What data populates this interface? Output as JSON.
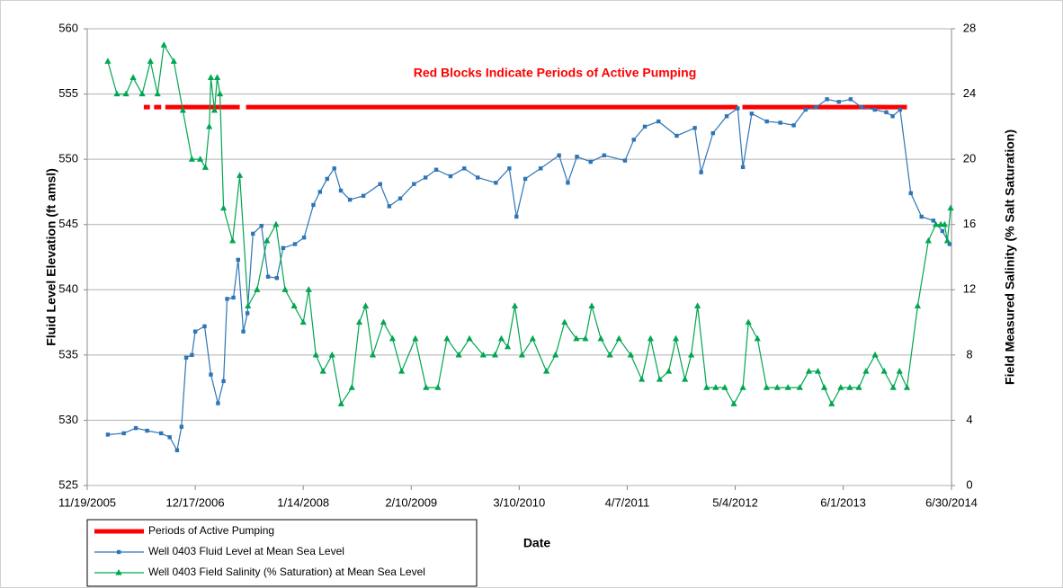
{
  "chart_data": {
    "type": "line",
    "annotation": "Red Blocks Indicate Periods of Active Pumping",
    "xlabel": "Date",
    "ylabel": "Fluid Level Elevation (ft amsl)",
    "y2label": "Field Measured Salinity (% Salt Saturation)",
    "xlim": [
      "11/19/2005",
      "6/30/2014"
    ],
    "xticks": [
      "11/19/2005",
      "12/17/2006",
      "1/14/2008",
      "2/10/2009",
      "3/10/2010",
      "4/7/2011",
      "5/4/2012",
      "6/1/2013",
      "6/30/2014"
    ],
    "ylim": [
      525,
      560
    ],
    "yticks": [
      525,
      530,
      535,
      540,
      545,
      550,
      555,
      560
    ],
    "y2lim": [
      0,
      28
    ],
    "y2ticks": [
      0,
      4,
      8,
      12,
      16,
      20,
      24,
      28
    ],
    "grid": true,
    "series": [
      {
        "name": "Periods of Active Pumping",
        "color": "#ff0000",
        "marker": "none",
        "axis": "y",
        "x": [
          "6/13/2006",
          "7/5/2006",
          "7/12/2006",
          "7/20/2006",
          "8/15/2006",
          "8/22/2006",
          "8/30/2006",
          "5/28/2007",
          "6/8/2007",
          "6/20/2007",
          "5/13/2012",
          "5/22/2012",
          "5/30/2012",
          "1/19/2014"
        ],
        "values": [
          554,
          554,
          null,
          554,
          554,
          null,
          554,
          554,
          null,
          554,
          554,
          null,
          554,
          554
        ]
      },
      {
        "name": "Well 0403 Fluid Level at Mean Sea Level",
        "color": "#2e75b6",
        "marker": "square",
        "axis": "y",
        "x": [
          "2/2/2006",
          "4/1/2006",
          "5/15/2006",
          "6/25/2006",
          "8/15/2006",
          "9/15/2006",
          "10/12/2006",
          "10/28/2006",
          "11/14/2006",
          "12/5/2006",
          "12/17/2006",
          "1/20/2007",
          "2/12/2007",
          "3/10/2007",
          "3/30/2007",
          "4/12/2007",
          "5/5/2007",
          "5/22/2007",
          "6/10/2007",
          "6/25/2007",
          "7/15/2007",
          "8/15/2007",
          "9/8/2007",
          "10/10/2007",
          "11/2/2007",
          "12/15/2007",
          "1/17/2008",
          "2/20/2008",
          "3/15/2008",
          "4/10/2008",
          "5/6/2008",
          "5/30/2008",
          "7/2/2008",
          "8/20/2008",
          "10/20/2008",
          "11/22/2008",
          "1/1/2009",
          "2/20/2009",
          "4/3/2009",
          "5/12/2009",
          "7/3/2009",
          "8/22/2009",
          "10/10/2009",
          "12/15/2009",
          "2/2/2010",
          "2/28/2010",
          "4/1/2010",
          "5/27/2010",
          "8/2/2010",
          "9/3/2010",
          "10/6/2010",
          "11/25/2010",
          "1/13/2011",
          "3/30/2011",
          "5/1/2011",
          "6/10/2011",
          "7/30/2011",
          "10/4/2011",
          "12/9/2011",
          "1/1/2012",
          "2/13/2012",
          "4/3/2012",
          "5/13/2012",
          "6/1/2012",
          "7/3/2012",
          "8/27/2012",
          "10/15/2012",
          "12/3/2012",
          "1/15/2013",
          "2/23/2013",
          "4/3/2013",
          "5/16/2013",
          "6/28/2013",
          "8/6/2013",
          "9/24/2013",
          "11/5/2013",
          "11/28/2013",
          "12/25/2013",
          "2/2/2014",
          "3/13/2014",
          "4/25/2014",
          "5/28/2014",
          "6/23/2014"
        ],
        "values": [
          528.9,
          529.0,
          529.4,
          529.2,
          529.0,
          528.7,
          527.7,
          529.5,
          534.8,
          535.0,
          536.8,
          537.2,
          533.5,
          531.3,
          533.0,
          539.3,
          539.4,
          542.3,
          536.8,
          538.2,
          544.3,
          544.9,
          541.0,
          540.9,
          543.2,
          543.5,
          544.0,
          546.5,
          547.5,
          548.5,
          549.3,
          547.6,
          546.9,
          547.2,
          548.1,
          546.4,
          547.0,
          548.1,
          548.6,
          549.2,
          548.7,
          549.3,
          548.6,
          548.2,
          549.3,
          545.6,
          548.5,
          549.3,
          550.3,
          548.2,
          550.2,
          549.8,
          550.3,
          549.9,
          551.5,
          552.5,
          552.9,
          551.8,
          552.4,
          549.0,
          552.0,
          553.3,
          553.9,
          549.4,
          553.5,
          552.9,
          552.8,
          552.6,
          553.8,
          554.0,
          554.6,
          554.4,
          554.6,
          554.0,
          553.8,
          553.6,
          553.3,
          553.8,
          547.4,
          545.6,
          545.3,
          544.5,
          543.5
        ]
      },
      {
        "name": "Well 0403 Field Salinity (% Saturation) at Mean Sea Level",
        "color": "#00a651",
        "marker": "triangle",
        "axis": "y2",
        "x": [
          "2/2/2006",
          "3/7/2006",
          "4/9/2006",
          "5/5/2006",
          "6/7/2006",
          "7/7/2006",
          "8/2/2006",
          "8/25/2006",
          "9/30/2006",
          "11/2/2006",
          "12/5/2006",
          "1/4/2007",
          "1/23/2007",
          "2/6/2007",
          "2/12/2007",
          "2/25/2007",
          "3/7/2007",
          "3/17/2007",
          "3/30/2007",
          "5/2/2007",
          "5/28/2007",
          "6/27/2007",
          "7/30/2007",
          "9/4/2007",
          "10/7/2007",
          "11/9/2007",
          "12/12/2007",
          "1/14/2008",
          "2/3/2008",
          "2/29/2008",
          "3/26/2008",
          "4/28/2008",
          "5/31/2008",
          "7/9/2008",
          "8/5/2008",
          "8/28/2008",
          "9/23/2008",
          "11/1/2008",
          "12/4/2008",
          "1/6/2009",
          "2/25/2009",
          "4/5/2009",
          "5/18/2009",
          "6/20/2009",
          "8/2/2009",
          "9/10/2009",
          "10/30/2009",
          "12/12/2009",
          "1/4/2010",
          "1/27/2010",
          "2/22/2010",
          "3/20/2010",
          "4/28/2010",
          "6/17/2010",
          "7/20/2010",
          "8/22/2010",
          "10/4/2010",
          "11/6/2010",
          "11/29/2010",
          "1/1/2011",
          "2/3/2011",
          "3/8/2011",
          "4/20/2011",
          "5/30/2011",
          "7/1/2011",
          "8/3/2011",
          "9/5/2011",
          "10/1/2011",
          "11/3/2011",
          "11/26/2011",
          "12/19/2011",
          "1/21/2012",
          "2/23/2012",
          "3/27/2012",
          "4/29/2012",
          "6/1/2012",
          "6/21/2012",
          "7/24/2012",
          "8/26/2012",
          "10/4/2012",
          "11/12/2012",
          "12/25/2012",
          "1/27/2013",
          "3/1/2013",
          "3/24/2013",
          "4/20/2013",
          "5/23/2013",
          "6/25/2013",
          "7/28/2013",
          "8/23/2013",
          "9/25/2013",
          "10/28/2013",
          "11/30/2013",
          "12/23/2013",
          "1/19/2014",
          "2/27/2014",
          "4/7/2014",
          "5/4/2014",
          "5/22/2014",
          "6/5/2014",
          "6/15/2014",
          "6/27/2014"
        ],
        "values": [
          26,
          24,
          24,
          25,
          24,
          26,
          24,
          27,
          26,
          23,
          20,
          20,
          19.5,
          22,
          25,
          23,
          25,
          24,
          17,
          15,
          19,
          11,
          12,
          15,
          16,
          12,
          11,
          10,
          12,
          8,
          7,
          8,
          5,
          6,
          10,
          11,
          8,
          10,
          9,
          7,
          9,
          6,
          6,
          9,
          8,
          9,
          8,
          8,
          9,
          8.5,
          11,
          8,
          9,
          7,
          8,
          10,
          9,
          9,
          11,
          9,
          8,
          9,
          8,
          6.5,
          9,
          6.5,
          7,
          9,
          6.5,
          8,
          11,
          6,
          6,
          6,
          5,
          6,
          10,
          9,
          6,
          6,
          6,
          6,
          7,
          7,
          6,
          5,
          6,
          6,
          6,
          7,
          8,
          7,
          6,
          7,
          6,
          11,
          15,
          16,
          16,
          16,
          15,
          17
        ]
      }
    ]
  }
}
